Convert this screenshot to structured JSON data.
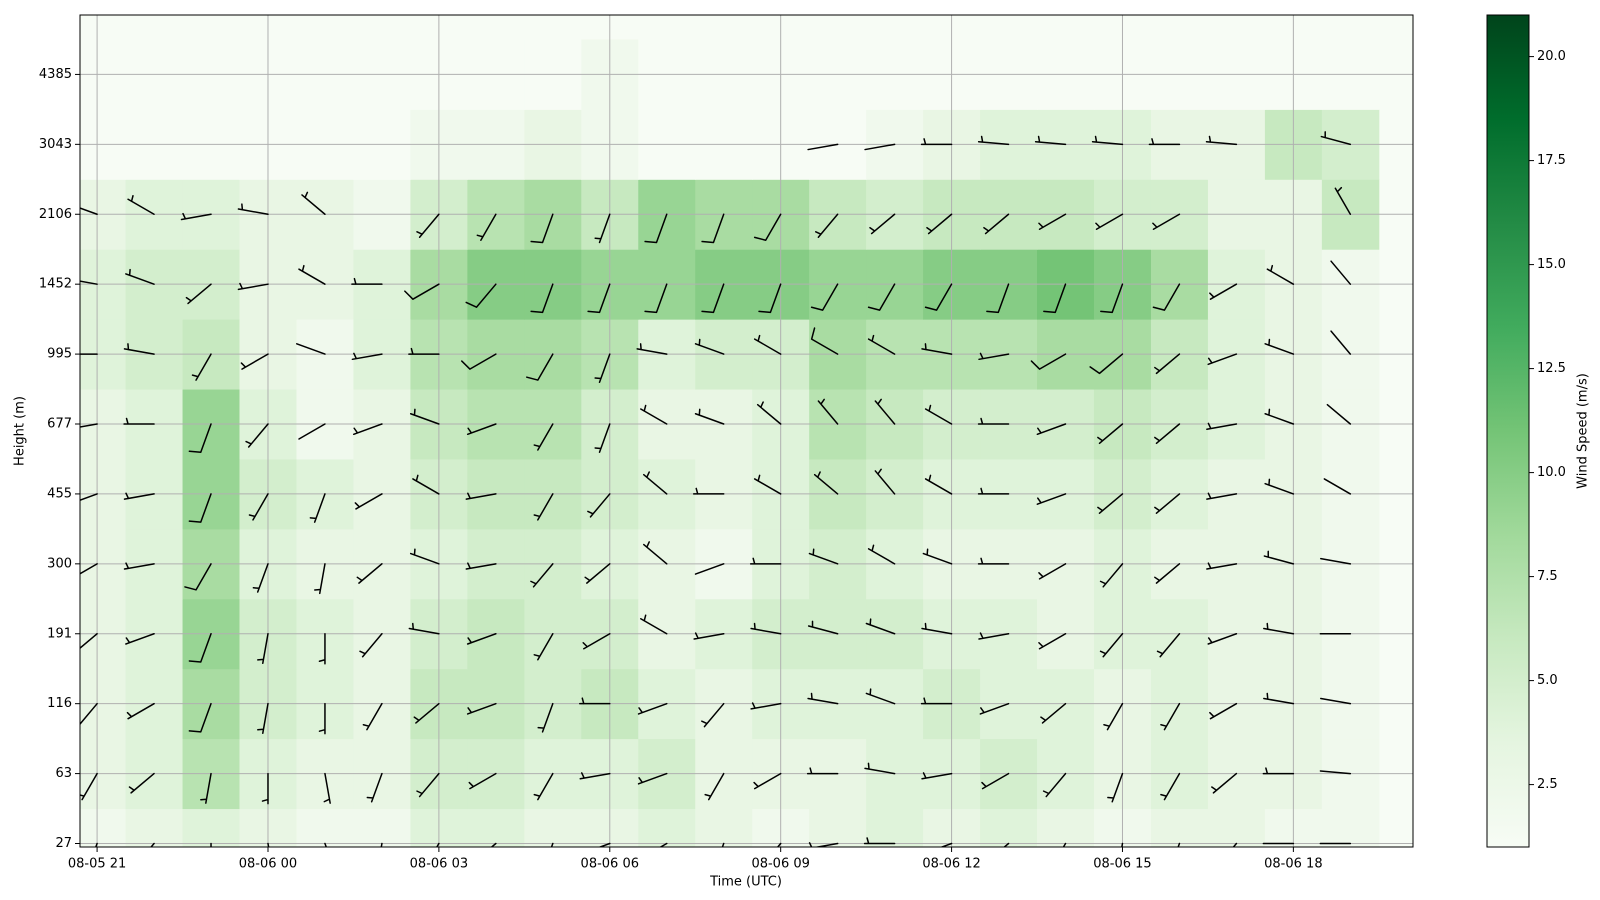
{
  "chart_data": {
    "type": "wind_barb_heatmap",
    "xlabel": "Time (UTC)",
    "ylabel": "Height (m)",
    "colorbar_label": "Wind Speed (m/s)",
    "colormap": "Greens",
    "grid": true,
    "xlim": [
      -0.3,
      23.1
    ],
    "xticks": [
      {
        "value": 0,
        "label": "08-05 21"
      },
      {
        "value": 3,
        "label": "08-06 00"
      },
      {
        "value": 6,
        "label": "08-06 03"
      },
      {
        "value": 9,
        "label": "08-06 06"
      },
      {
        "value": 12,
        "label": "08-06 09"
      },
      {
        "value": 15,
        "label": "08-06 12"
      },
      {
        "value": 18,
        "label": "08-06 15"
      },
      {
        "value": 21,
        "label": "08-06 18"
      }
    ],
    "ylim": [
      -0.05,
      11.85
    ],
    "yticks": [
      {
        "value": 0,
        "label": "27"
      },
      {
        "value": 1,
        "label": "63"
      },
      {
        "value": 2,
        "label": "116"
      },
      {
        "value": 3,
        "label": "191"
      },
      {
        "value": 4,
        "label": "300"
      },
      {
        "value": 5,
        "label": "455"
      },
      {
        "value": 6,
        "label": "677"
      },
      {
        "value": 7,
        "label": "995"
      },
      {
        "value": 8,
        "label": "1452"
      },
      {
        "value": 9,
        "label": "2106"
      },
      {
        "value": 10,
        "label": "3043"
      },
      {
        "value": 11,
        "label": "4385"
      }
    ],
    "clim": [
      1,
      21
    ],
    "cticks": [
      2.5,
      {
        "value": 5,
        "label": "5.0"
      },
      7.5,
      {
        "value": 10,
        "label": "10.0"
      },
      12.5,
      {
        "value": 15,
        "label": "15.0"
      },
      17.5,
      {
        "value": 20,
        "label": "20.0"
      }
    ],
    "speed": [
      [
        2,
        3,
        4,
        3,
        2,
        2,
        4,
        4,
        3,
        3,
        4,
        3,
        2,
        3,
        4,
        3,
        4,
        3,
        2,
        3,
        3,
        2,
        2
      ],
      [
        3,
        4,
        7,
        4,
        3,
        3,
        5,
        5,
        4,
        4,
        5,
        3,
        3,
        3,
        4,
        4,
        5,
        4,
        3,
        4,
        3,
        3,
        2
      ],
      [
        3,
        4,
        8,
        5,
        4,
        3,
        6,
        6,
        5,
        6,
        4,
        3,
        4,
        4,
        4,
        5,
        4,
        4,
        3,
        4,
        3,
        3,
        2
      ],
      [
        3,
        4,
        9,
        5,
        4,
        3,
        5,
        6,
        5,
        5,
        3,
        4,
        5,
        5,
        5,
        4,
        4,
        3,
        4,
        4,
        3,
        3,
        2
      ],
      [
        3,
        4,
        8,
        4,
        3,
        3,
        4,
        5,
        5,
        4,
        3,
        2,
        4,
        5,
        4,
        3,
        3,
        3,
        4,
        3,
        3,
        3,
        2
      ],
      [
        3,
        4,
        9,
        5,
        4,
        3,
        5,
        6,
        6,
        5,
        4,
        3,
        4,
        6,
        5,
        4,
        4,
        4,
        5,
        4,
        3,
        3,
        2
      ],
      [
        3,
        4,
        9,
        4,
        2,
        3,
        6,
        7,
        7,
        5,
        3,
        3,
        4,
        7,
        6,
        5,
        5,
        5,
        6,
        5,
        4,
        3,
        2
      ],
      [
        4,
        5,
        6,
        3,
        2,
        4,
        7,
        8,
        8,
        7,
        4,
        5,
        5,
        8,
        7,
        7,
        7,
        8,
        8,
        6,
        4,
        3,
        2
      ],
      [
        4,
        5,
        5,
        3,
        3,
        4,
        8,
        10,
        10,
        9,
        9,
        10,
        10,
        9,
        9,
        10,
        10,
        11,
        10,
        8,
        4,
        3,
        2
      ],
      [
        3,
        4,
        4,
        3,
        3,
        2,
        5,
        7,
        8,
        6,
        9,
        8,
        8,
        6,
        5,
        6,
        6,
        6,
        5,
        5,
        3,
        3,
        6
      ],
      [
        1,
        1,
        1,
        1,
        1,
        1,
        2,
        2,
        3,
        2,
        1,
        1,
        1,
        1,
        2,
        3,
        4,
        4,
        4,
        3,
        3,
        6,
        5
      ],
      [
        1,
        1,
        1,
        1,
        1,
        1,
        1,
        1,
        1,
        2,
        1,
        1,
        1,
        1,
        1,
        1,
        1,
        1,
        1,
        1,
        1,
        1,
        1
      ]
    ],
    "direction": [
      [
        200,
        220,
        180,
        170,
        160,
        190,
        210,
        230,
        200,
        250,
        240,
        200,
        220,
        260,
        270,
        250,
        230,
        210,
        190,
        200,
        220,
        270,
        270
      ],
      [
        210,
        230,
        190,
        180,
        170,
        200,
        220,
        240,
        210,
        260,
        250,
        210,
        240,
        270,
        280,
        260,
        240,
        220,
        200,
        210,
        230,
        270,
        275
      ],
      [
        220,
        240,
        200,
        190,
        180,
        210,
        230,
        250,
        200,
        270,
        250,
        220,
        260,
        280,
        290,
        270,
        250,
        230,
        210,
        210,
        240,
        280,
        280
      ],
      [
        230,
        250,
        200,
        190,
        180,
        220,
        280,
        250,
        210,
        240,
        300,
        260,
        280,
        285,
        290,
        280,
        260,
        240,
        220,
        220,
        250,
        280,
        270
      ],
      [
        240,
        260,
        210,
        200,
        190,
        230,
        290,
        260,
        220,
        230,
        310,
        250,
        270,
        290,
        300,
        290,
        270,
        240,
        220,
        230,
        260,
        285,
        280
      ],
      [
        250,
        260,
        200,
        210,
        200,
        240,
        300,
        260,
        210,
        220,
        310,
        270,
        300,
        310,
        320,
        300,
        270,
        250,
        230,
        230,
        260,
        290,
        300
      ],
      [
        260,
        270,
        200,
        220,
        240,
        250,
        290,
        250,
        210,
        200,
        300,
        290,
        310,
        320,
        320,
        300,
        270,
        250,
        230,
        230,
        260,
        290,
        310
      ],
      [
        270,
        280,
        210,
        240,
        290,
        260,
        270,
        240,
        210,
        200,
        280,
        290,
        300,
        300,
        300,
        280,
        260,
        240,
        230,
        230,
        250,
        290,
        320
      ],
      [
        280,
        290,
        230,
        260,
        300,
        270,
        240,
        220,
        200,
        200,
        200,
        200,
        200,
        210,
        210,
        210,
        200,
        200,
        200,
        210,
        240,
        300,
        320
      ],
      [
        290,
        300,
        260,
        280,
        310,
        null,
        220,
        210,
        200,
        200,
        200,
        200,
        210,
        220,
        230,
        230,
        230,
        240,
        240,
        240,
        null,
        null,
        330
      ],
      [
        null,
        null,
        null,
        null,
        null,
        null,
        null,
        null,
        null,
        null,
        null,
        null,
        null,
        260,
        260,
        270,
        275,
        275,
        275,
        270,
        275,
        null,
        285
      ],
      [
        null,
        null,
        null,
        null,
        null,
        null,
        null,
        null,
        null,
        null,
        null,
        null,
        null,
        null,
        null,
        null,
        null,
        null,
        null,
        null,
        null,
        null,
        null
      ]
    ]
  }
}
